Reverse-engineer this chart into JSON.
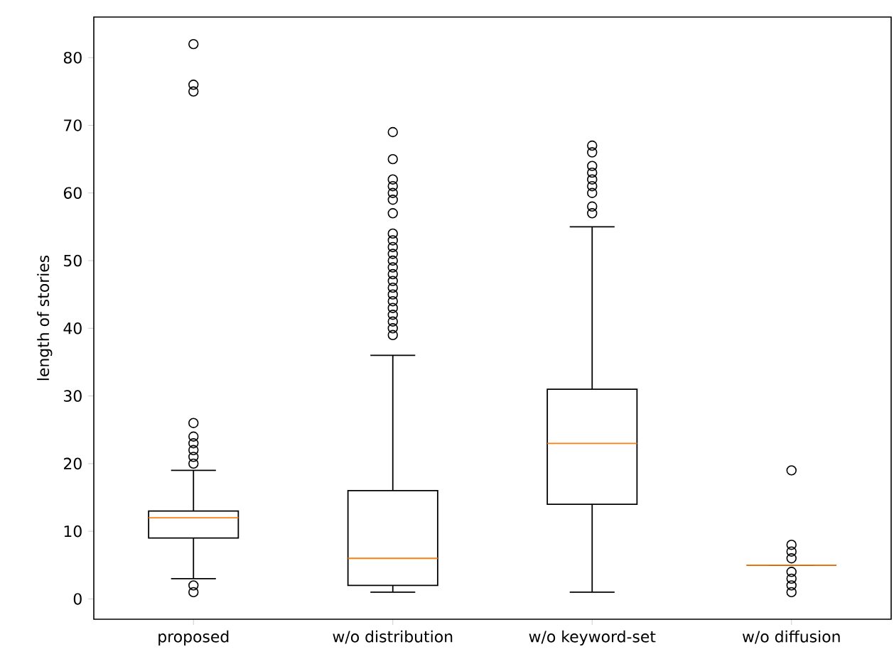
{
  "chart_data": {
    "type": "box",
    "ylabel": "length of stories",
    "categories": [
      "proposed",
      "w/o distribution",
      "w/o keyword-set",
      "w/o diffusion"
    ],
    "boxes": [
      {
        "low": 3,
        "q1": 9,
        "median": 12,
        "q3": 13,
        "high": 19,
        "outliers": [
          82,
          76,
          75,
          26,
          24,
          23,
          22,
          21,
          20,
          2,
          1
        ]
      },
      {
        "low": 1,
        "q1": 2,
        "median": 6,
        "q3": 16,
        "high": 36,
        "outliers": [
          69,
          65,
          62,
          61,
          60,
          59,
          57,
          54,
          53,
          52,
          51,
          50,
          49,
          48,
          47,
          46,
          45,
          44,
          43,
          42,
          41,
          40,
          39
        ]
      },
      {
        "low": 1,
        "q1": 14,
        "median": 23,
        "q3": 31,
        "high": 55,
        "outliers": [
          67,
          66,
          64,
          63,
          62,
          61,
          60,
          58,
          57
        ]
      },
      {
        "low": 5,
        "q1": 5,
        "median": 5,
        "q3": 5,
        "high": 5,
        "outliers": [
          19,
          8,
          7,
          6,
          4,
          3,
          2,
          1
        ]
      }
    ],
    "ylim": [
      -3,
      86
    ],
    "yticks": [
      0,
      10,
      20,
      30,
      40,
      50,
      60,
      70,
      80
    ],
    "marker": "circle",
    "grid": false
  }
}
